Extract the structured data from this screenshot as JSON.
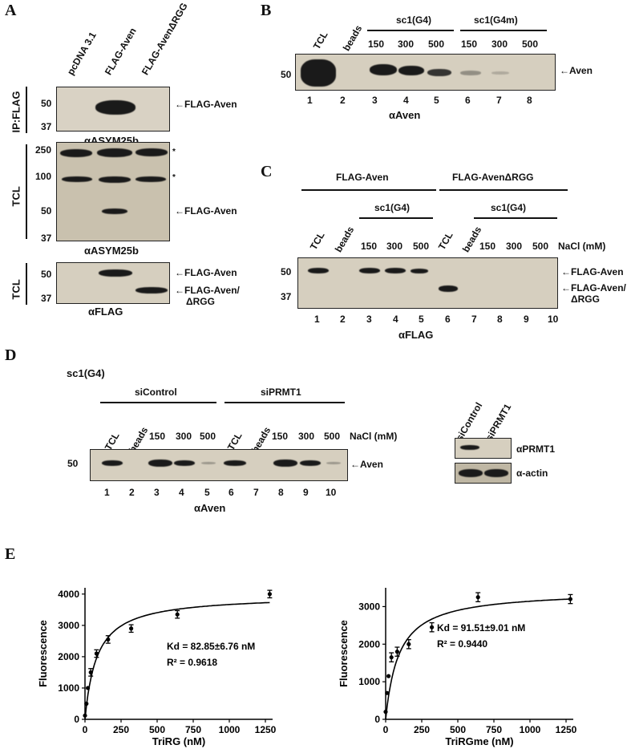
{
  "panelA": {
    "letter": "A",
    "lanes": [
      "pcDNA 3.1",
      "FLAG-Aven",
      "FLAG-AvenΔRGG"
    ],
    "side_ip": "IP:FLAG",
    "side_tcl1": "TCL",
    "side_tcl2": "TCL",
    "mw1": [
      "50",
      "37"
    ],
    "mw2": [
      "250",
      "100",
      "50",
      "37"
    ],
    "mw3": [
      "50",
      "37"
    ],
    "ab1": "αASYM25b",
    "ab2": "αASYM25b",
    "ab3": "αFLAG",
    "arrow1": "FLAG-Aven",
    "arrow2": "FLAG-Aven",
    "arrow3": "FLAG-Aven",
    "arrow4a": "FLAG-Aven/",
    "arrow4b": "ΔRGG",
    "star1": "*",
    "star2": "*"
  },
  "panelB": {
    "letter": "B",
    "col_tcl": "TCL",
    "col_beads": "beads",
    "grp1": "sc1(G4)",
    "grp2": "sc1(G4m)",
    "conc": [
      "150",
      "300",
      "500",
      "150",
      "300",
      "500"
    ],
    "mw": "50",
    "arrow": "Aven",
    "nums": [
      "1",
      "2",
      "3",
      "4",
      "5",
      "6",
      "7",
      "8"
    ],
    "ab": "αAven"
  },
  "panelC": {
    "letter": "C",
    "grp1": "FLAG-Aven",
    "grp2": "FLAG-AvenΔRGG",
    "sub1": "sc1(G4)",
    "sub2": "sc1(G4)",
    "cols": [
      "TCL",
      "beads",
      "TCL",
      "beads"
    ],
    "conc": [
      "150",
      "300",
      "500",
      "150",
      "300",
      "500"
    ],
    "nacl": "NaCl (mM)",
    "mw": [
      "50",
      "37"
    ],
    "arrow1": "FLAG-Aven",
    "arrow2a": "FLAG-Aven/",
    "arrow2b": "ΔRGG",
    "nums": [
      "1",
      "2",
      "3",
      "4",
      "5",
      "6",
      "7",
      "8",
      "9",
      "10"
    ],
    "ab": "αFLAG"
  },
  "panelD": {
    "letter": "D",
    "title": "sc1(G4)",
    "grp1": "siControl",
    "grp2": "siPRMT1",
    "cols": [
      "TCL",
      "beads",
      "TCL",
      "beads"
    ],
    "conc": [
      "150",
      "300",
      "500",
      "150",
      "300",
      "500"
    ],
    "nacl": "NaCl (mM)",
    "mw": "50",
    "arrow": "Aven",
    "nums": [
      "1",
      "2",
      "3",
      "4",
      "5",
      "6",
      "7",
      "8",
      "9",
      "10"
    ],
    "ab": "αAven",
    "side_lanes": [
      "siControl",
      "siPRMT1"
    ],
    "side_ab1": "αPRMT1",
    "side_ab2": "α-actin"
  },
  "panelE": {
    "letter": "E"
  },
  "chart_data": [
    {
      "type": "scatter",
      "xlabel": "TriRG (nM)",
      "ylabel": "Fluorescence",
      "xticks": [
        0,
        250,
        500,
        750,
        1000,
        1250
      ],
      "yticks": [
        0,
        1000,
        2000,
        3000,
        4000
      ],
      "xlim": [
        0,
        1300
      ],
      "ylim": [
        0,
        4200
      ],
      "x": [
        0,
        10,
        20,
        40,
        80,
        160,
        320,
        640,
        1280
      ],
      "y": [
        120,
        500,
        1000,
        1500,
        2100,
        2550,
        2900,
        3350,
        4000
      ],
      "fit": {
        "Bmax": 3970,
        "Kd": 82.85
      },
      "annotation": [
        "Kd = 82.85±6.76 nM",
        "R² = 0.9618"
      ]
    },
    {
      "type": "scatter",
      "xlabel": "TriRGme (nM)",
      "ylabel": "Fluorescence",
      "xticks": [
        0,
        250,
        500,
        750,
        1000,
        1250
      ],
      "yticks": [
        0,
        1000,
        2000,
        3000
      ],
      "xlim": [
        0,
        1300
      ],
      "ylim": [
        0,
        3500
      ],
      "x": [
        0,
        10,
        20,
        40,
        80,
        160,
        320,
        640,
        1280
      ],
      "y": [
        200,
        700,
        1150,
        1650,
        1800,
        2000,
        2450,
        3250,
        3200
      ],
      "fit": {
        "Bmax": 3430,
        "Kd": 91.51
      },
      "annotation": [
        "Kd = 91.51±9.01 nM",
        "R² = 0.9440"
      ]
    }
  ]
}
